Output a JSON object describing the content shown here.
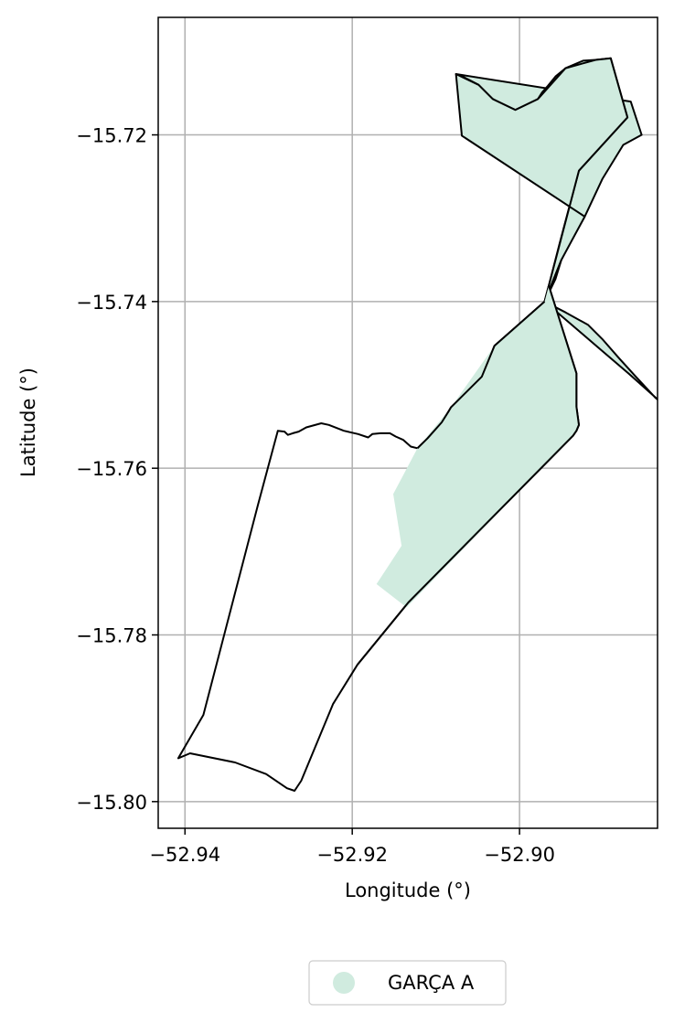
{
  "figure": {
    "xlabel": "Longitude (°)",
    "ylabel": "Latitude (°)",
    "xticks": [
      {
        "value": -52.94,
        "label": "−52.94"
      },
      {
        "value": -52.92,
        "label": "−52.92"
      },
      {
        "value": -52.9,
        "label": "−52.90"
      }
    ],
    "yticks": [
      {
        "value": -15.72,
        "label": "−15.72"
      },
      {
        "value": -15.74,
        "label": "−15.74"
      },
      {
        "value": -15.76,
        "label": "−15.76"
      },
      {
        "value": -15.78,
        "label": "−15.78"
      },
      {
        "value": -15.8,
        "label": "−15.80"
      }
    ],
    "grid": true,
    "legend_placement": "bottom-center"
  },
  "chart_data": {
    "type": "map",
    "xlim": [
      -52.9432,
      -52.8835
    ],
    "ylim": [
      -15.8032,
      -15.7059
    ],
    "x_unit": "longitude degrees",
    "y_unit": "latitude degrees",
    "series": [
      {
        "name": "GARÇA A",
        "fill": "#d0ebdf",
        "polygons": [
          [
            [
              -52.9076,
              -15.7127
            ],
            [
              -52.9066,
              -15.7131
            ],
            [
              -52.9049,
              -15.714
            ],
            [
              -52.9032,
              -15.7157
            ],
            [
              -52.9018,
              -15.7165
            ],
            [
              -52.9005,
              -15.717
            ],
            [
              -52.8996,
              -15.7168
            ],
            [
              -52.8987,
              -15.7167
            ],
            [
              -52.8981,
              -15.7165
            ],
            [
              -52.898,
              -15.7161
            ],
            [
              -52.8978,
              -15.7157
            ],
            [
              -52.8973,
              -15.7149
            ],
            [
              -52.8966,
              -15.7141
            ],
            [
              -52.8957,
              -15.713
            ],
            [
              -52.8945,
              -15.712
            ],
            [
              -52.8924,
              -15.7111
            ],
            [
              -52.8909,
              -15.711
            ],
            [
              -52.8891,
              -15.7108
            ],
            [
              -52.8871,
              -15.7179
            ],
            [
              -52.8929,
              -15.7243
            ],
            [
              -52.8952,
              -15.733
            ],
            [
              -52.8965,
              -15.7381
            ],
            [
              -52.897,
              -15.74
            ],
            [
              -52.8957,
              -15.7373
            ],
            [
              -52.895,
              -15.735
            ],
            [
              -52.8938,
              -15.7327
            ],
            [
              -52.8922,
              -15.7298
            ],
            [
              -52.8901,
              -15.7253
            ],
            [
              -52.8876,
              -15.7212
            ],
            [
              -52.8854,
              -15.72
            ],
            [
              -52.8867,
              -15.716
            ]
          ],
          [
            [
              -52.9069,
              -15.7201
            ],
            [
              -52.9076,
              -15.7127
            ],
            [
              -52.9049,
              -15.714
            ],
            [
              -52.9032,
              -15.7157
            ],
            [
              -52.9005,
              -15.717
            ],
            [
              -52.8978,
              -15.7157
            ],
            [
              -52.8945,
              -15.712
            ],
            [
              -52.8909,
              -15.711
            ],
            [
              -52.8891,
              -15.7108
            ],
            [
              -52.8871,
              -15.7179
            ],
            [
              -52.8929,
              -15.7243
            ],
            [
              -52.8965,
              -15.7381
            ],
            [
              -52.897,
              -15.74
            ],
            [
              -52.895,
              -15.735
            ],
            [
              -52.8922,
              -15.7298
            ]
          ],
          [
            [
              -52.897,
              -15.74
            ],
            [
              -52.8945,
              -15.7413
            ],
            [
              -52.8918,
              -15.7428
            ],
            [
              -52.8901,
              -15.7445
            ],
            [
              -52.8881,
              -15.7468
            ],
            [
              -52.8861,
              -15.749
            ],
            [
              -52.8838,
              -15.7515
            ],
            [
              -52.8812,
              -15.7538
            ],
            [
              -52.8823,
              -15.7528
            ],
            [
              -52.887,
              -15.7486
            ]
          ]
        ]
      },
      {
        "name": "",
        "fill": "none",
        "polygons": [
          [
            [
              -52.9289,
              -15.7555
            ],
            [
              -52.9281,
              -15.7556
            ],
            [
              -52.9277,
              -15.756
            ],
            [
              -52.9271,
              -15.7558
            ],
            [
              -52.9264,
              -15.7556
            ],
            [
              -52.9255,
              -15.7551
            ],
            [
              -52.9237,
              -15.7546
            ],
            [
              -52.9228,
              -15.7548
            ],
            [
              -52.921,
              -15.7555
            ],
            [
              -52.9193,
              -15.7559
            ],
            [
              -52.9181,
              -15.7563
            ],
            [
              -52.9176,
              -15.7559
            ],
            [
              -52.9166,
              -15.7558
            ],
            [
              -52.9155,
              -15.7558
            ],
            [
              -52.9148,
              -15.7562
            ],
            [
              -52.9139,
              -15.7566
            ],
            [
              -52.913,
              -15.7574
            ],
            [
              -52.9122,
              -15.7576
            ],
            [
              -52.911,
              -15.7564
            ],
            [
              -52.9093,
              -15.7545
            ],
            [
              -52.9085,
              -15.7532
            ],
            [
              -52.9082,
              -15.7527
            ],
            [
              -52.9045,
              -15.749
            ],
            [
              -52.903,
              -15.7453
            ],
            [
              -52.897,
              -15.74
            ],
            [
              -52.8965,
              -15.7381
            ],
            [
              -52.8932,
              -15.7486
            ],
            [
              -52.8932,
              -15.7526
            ],
            [
              -52.8929,
              -15.7548
            ],
            [
              -52.8932,
              -15.7555
            ],
            [
              -52.8936,
              -15.7561
            ],
            [
              -52.9133,
              -15.7761
            ],
            [
              -52.9194,
              -15.7836
            ],
            [
              -52.9223,
              -15.7883
            ],
            [
              -52.9261,
              -15.7975
            ],
            [
              -52.9269,
              -15.7987
            ],
            [
              -52.9278,
              -15.7984
            ],
            [
              -52.9303,
              -15.7967
            ],
            [
              -52.934,
              -15.7953
            ],
            [
              -52.9394,
              -15.7942
            ],
            [
              -52.9408,
              -15.7948
            ],
            [
              -52.9378,
              -15.7896
            ],
            [
              -52.9313,
              -15.7645
            ]
          ]
        ]
      }
    ],
    "legend": [
      {
        "label": "GARÇA A",
        "color": "#d0ebdf",
        "marker": "circle"
      }
    ]
  }
}
